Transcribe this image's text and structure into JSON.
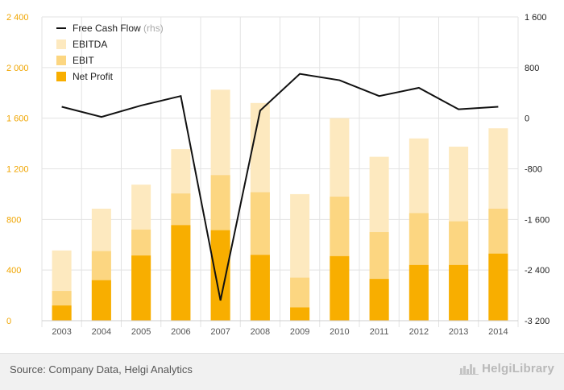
{
  "chart_data": {
    "type": "bar",
    "categories": [
      "2003",
      "2004",
      "2005",
      "2006",
      "2007",
      "2008",
      "2009",
      "2010",
      "2011",
      "2012",
      "2013",
      "2014"
    ],
    "series": [
      {
        "name": "EBITDA",
        "type": "bar",
        "axis": "left",
        "color": "#fde9bf",
        "values": [
          555,
          885,
          1075,
          1355,
          1825,
          1720,
          1000,
          1600,
          1295,
          1440,
          1375,
          1520
        ]
      },
      {
        "name": "EBIT",
        "type": "bar",
        "axis": "left",
        "color": "#fcd681",
        "values": [
          235,
          550,
          720,
          1005,
          1150,
          1015,
          340,
          980,
          700,
          850,
          785,
          885
        ]
      },
      {
        "name": "Net Profit",
        "type": "bar",
        "axis": "left",
        "color": "#f8ae00",
        "values": [
          120,
          320,
          515,
          755,
          715,
          520,
          105,
          510,
          330,
          440,
          440,
          530
        ]
      },
      {
        "name": "Free Cash Flow",
        "type": "line",
        "axis": "right",
        "color": "#111111",
        "values": [
          180,
          20,
          200,
          350,
          -2880,
          120,
          700,
          600,
          350,
          480,
          140,
          180
        ]
      }
    ],
    "left_axis": {
      "min": 0,
      "max": 2400,
      "ticks": [
        0,
        400,
        800,
        1200,
        1600,
        2000,
        2400
      ],
      "tick_labels": [
        "0",
        "400",
        "800",
        "1 200",
        "1 600",
        "2 000",
        "2 400"
      ]
    },
    "right_axis": {
      "min": -3200,
      "max": 1600,
      "ticks": [
        -3200,
        -2400,
        -1600,
        -800,
        0,
        800,
        1600
      ],
      "tick_labels": [
        "-3 200",
        "-2 400",
        "-1 600",
        "-800",
        "0",
        "800",
        "1 600"
      ]
    },
    "legend": {
      "position": "top-left",
      "entries": [
        {
          "label": "Free Cash Flow",
          "suffix": "(rhs)",
          "symbol": "line",
          "color": "#111111"
        },
        {
          "label": "EBITDA",
          "suffix": "",
          "symbol": "box",
          "color": "#fde9bf"
        },
        {
          "label": "EBIT",
          "suffix": "",
          "symbol": "box",
          "color": "#fcd681"
        },
        {
          "label": "Net Profit",
          "suffix": "",
          "symbol": "box",
          "color": "#f8ae00"
        }
      ]
    },
    "grid": true,
    "colors": {
      "left_axis_text": "#f0a500",
      "right_axis_text": "#222222",
      "x_axis_text": "#555555",
      "grid": "#e3e3e3"
    }
  },
  "footer": {
    "source": "Source: Company Data, Helgi Analytics",
    "brand": "HelgiLibrary",
    "brand_icon": "city-skyline-icon"
  }
}
